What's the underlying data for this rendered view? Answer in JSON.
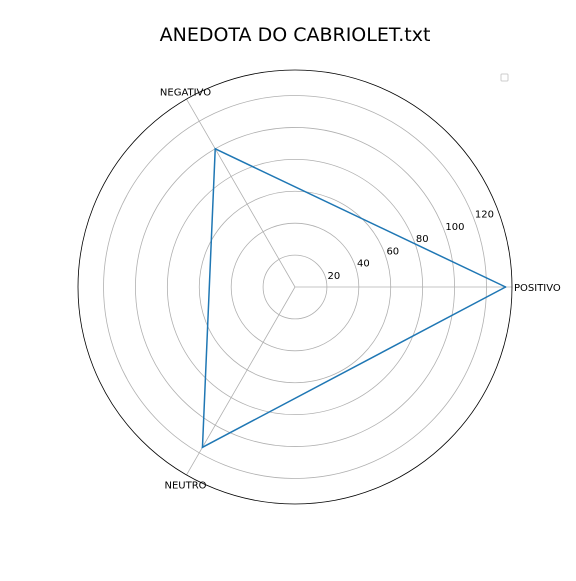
{
  "chart_data": {
    "type": "radar",
    "title": "ANEDOTA DO CABRIOLET.txt",
    "categories": [
      "POSITIVO",
      "NEGATIVO",
      "NEUTRO"
    ],
    "series": [
      {
        "values": [
          132,
          100,
          116
        ],
        "color": "#1f77b4"
      }
    ],
    "rlim": [
      0,
      136
    ],
    "rticks": [
      20,
      40,
      60,
      80,
      100,
      120
    ],
    "grid": true,
    "legend": {
      "placement": "top-right",
      "entries": []
    }
  }
}
